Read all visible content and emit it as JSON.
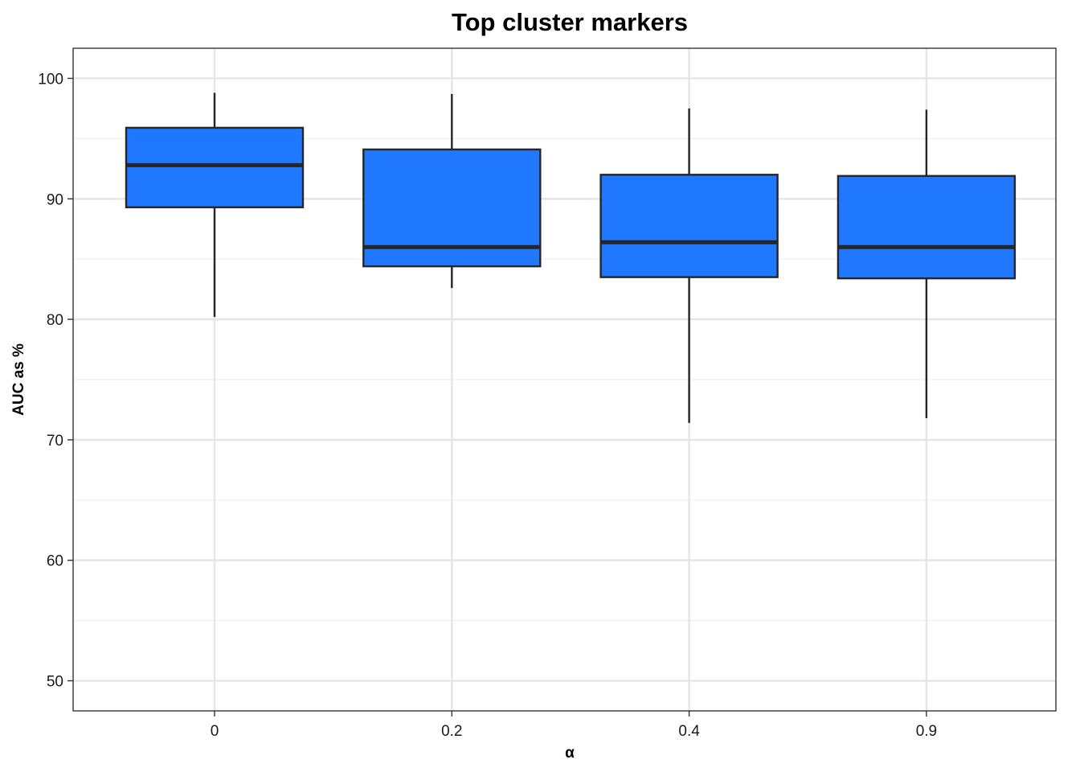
{
  "chart_data": {
    "type": "box",
    "title": "Top cluster markers",
    "xlabel": "α",
    "ylabel": "AUC as %",
    "categories": [
      "0",
      "0.2",
      "0.4",
      "0.9"
    ],
    "boxes": [
      {
        "category": "0",
        "whisker_low": 80.2,
        "q1": 89.3,
        "median": 92.8,
        "q3": 95.9,
        "whisker_high": 98.8
      },
      {
        "category": "0.2",
        "whisker_low": 82.6,
        "q1": 84.4,
        "median": 86.0,
        "q3": 94.1,
        "whisker_high": 98.7
      },
      {
        "category": "0.4",
        "whisker_low": 71.4,
        "q1": 83.5,
        "median": 86.4,
        "q3": 92.0,
        "whisker_high": 97.5
      },
      {
        "category": "0.9",
        "whisker_low": 71.8,
        "q1": 83.4,
        "median": 86.0,
        "q3": 91.9,
        "whisker_high": 97.4
      }
    ],
    "yticks": [
      "50",
      "60",
      "70",
      "80",
      "90",
      "100"
    ],
    "ylim": [
      47.5,
      102.5
    ],
    "grid": true,
    "legend": "none",
    "colors": {
      "box_fill": "#1f78ff",
      "box_outline": "#262626",
      "grid_major": "#e5e5e5",
      "grid_minor": "#efefef",
      "panel_border": "#333333"
    }
  }
}
